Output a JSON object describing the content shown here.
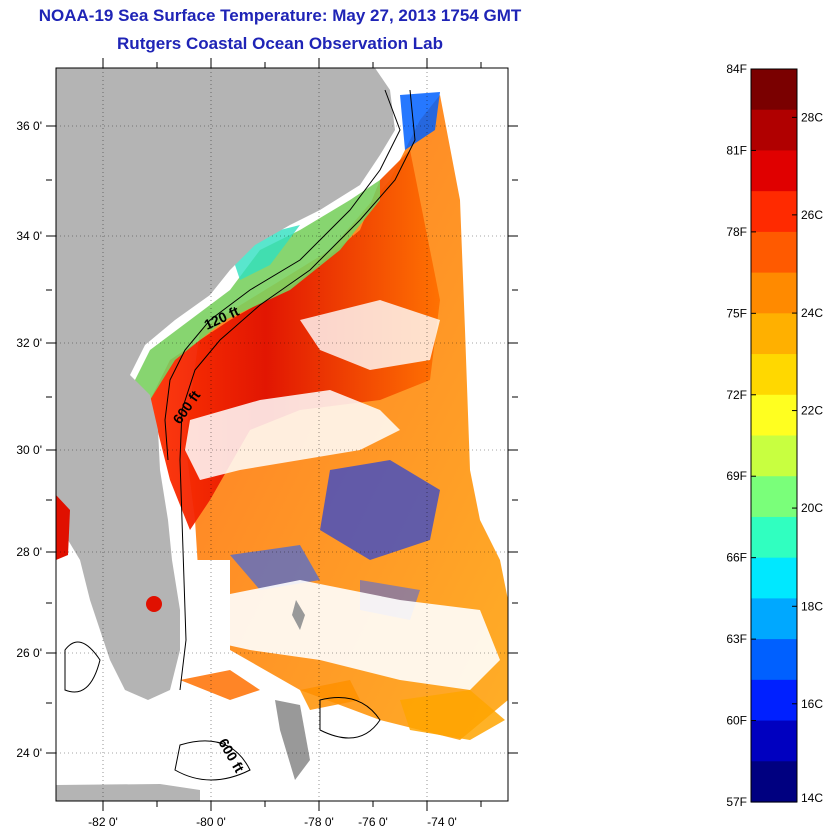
{
  "title": "NOAA-19 Sea Surface Temperature:  May 27, 2013 1754 GMT",
  "subtitle": "Rutgers Coastal Ocean Observation Lab",
  "map": {
    "lat_labels": [
      "36 0'",
      "34 0'",
      "32 0'",
      "30 0'",
      "28 0'",
      "26 0'",
      "24 0'"
    ],
    "lon_labels": [
      "-82 0'",
      "-80 0'",
      "-78 0'",
      "-76 0'",
      "-74 0'"
    ],
    "contour_labels": [
      "120 ft",
      "600 ft",
      "600 ft"
    ]
  },
  "colorbar": {
    "f_labels": [
      "84F",
      "81F",
      "78F",
      "75F",
      "72F",
      "69F",
      "66F",
      "63F",
      "60F",
      "57F"
    ],
    "c_labels": [
      "28C",
      "26C",
      "24C",
      "22C",
      "20C",
      "18C",
      "16C",
      "14C"
    ],
    "colors": [
      "#7a0000",
      "#b00000",
      "#e00000",
      "#ff2a00",
      "#ff5a00",
      "#ff8a00",
      "#ffb000",
      "#ffd800",
      "#ffff20",
      "#c8ff40",
      "#7aff7a",
      "#30ffc0",
      "#00e8ff",
      "#00a8ff",
      "#0060ff",
      "#0020ff",
      "#0000c0",
      "#000080"
    ]
  },
  "colors": {
    "land": "#b4b4b4",
    "title": "#1f24b6"
  }
}
